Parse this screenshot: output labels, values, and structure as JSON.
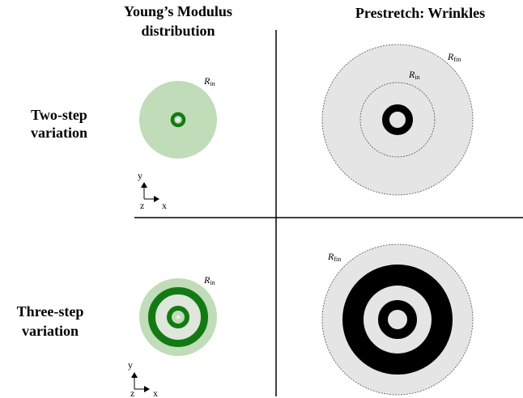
{
  "headers": {
    "left": [
      "Young’s Modulus",
      "distribution"
    ],
    "right": "Prestretch: Wrinkles"
  },
  "rows": [
    {
      "label": [
        "Two-step",
        "variation"
      ]
    },
    {
      "label": [
        "Three-step",
        "variation"
      ]
    }
  ],
  "labels": {
    "r_in_top_left": {
      "base": "R",
      "sub": "in"
    },
    "r_in_top_right": {
      "base": "R",
      "sub": "in"
    },
    "r_fin_top_right": {
      "base": "R",
      "sub": "fin"
    },
    "r_in_bottom_left": {
      "base": "R",
      "sub": "in"
    },
    "r_fin_bottom_right": {
      "base": "R",
      "sub": "fin"
    }
  },
  "axes": {
    "y": "y",
    "z": "z",
    "x": "x"
  }
}
